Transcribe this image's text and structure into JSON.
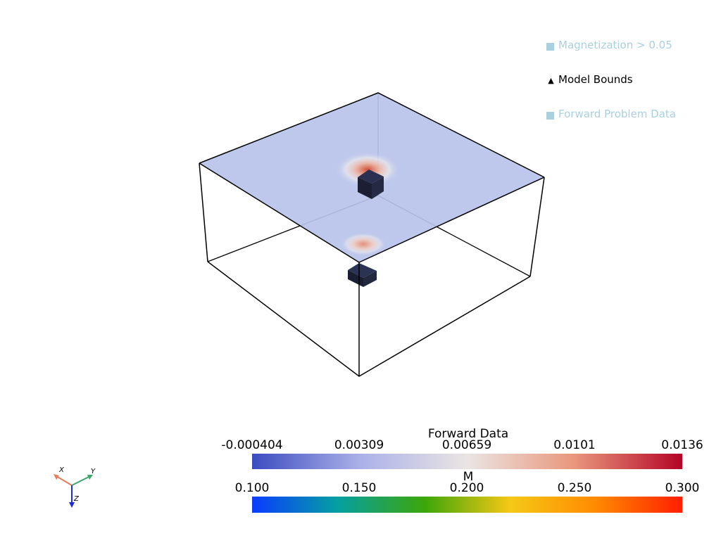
{
  "legend": {
    "items": [
      {
        "label": "Magnetization > 0.05",
        "marker": "square",
        "color": "#a9d0df",
        "icon": "square-swatch-icon"
      },
      {
        "label": "Model Bounds",
        "marker": "triangle",
        "color": "#000000",
        "icon": "triangle-marker-icon"
      },
      {
        "label": "Forward Problem Data",
        "marker": "square",
        "color": "#a9d0df",
        "icon": "square-swatch-icon"
      }
    ]
  },
  "colorbars": [
    {
      "title": "Forward Data",
      "ticks": [
        "-0.000404",
        "0.00309",
        "0.00659",
        "0.0101",
        "0.0136"
      ],
      "range": [
        -0.000404,
        0.0136
      ],
      "colormap": "coolwarm",
      "colors": [
        "#3b4cc0",
        "#aab0e8",
        "#eae5e3",
        "#e9967c",
        "#b40426"
      ]
    },
    {
      "title": "M",
      "ticks": [
        "0.100",
        "0.150",
        "0.200",
        "0.250",
        "0.300"
      ],
      "range": [
        0.1,
        0.3
      ],
      "colormap": "rainbow",
      "colors": [
        "#0a3cff",
        "#06a0a0",
        "#3ca60a",
        "#f5c816",
        "#ff8a00",
        "#ff1e00"
      ]
    }
  ],
  "axes": {
    "x_label": "X",
    "y_label": "Y",
    "z_label": "Z",
    "x_color": "#e87b5e",
    "y_color": "#3aa86a",
    "z_color": "#1c2fd8"
  },
  "scene": {
    "surface_color": "#b7c1ea",
    "bounds_color": "#000000",
    "block_color": "#1e2238"
  }
}
